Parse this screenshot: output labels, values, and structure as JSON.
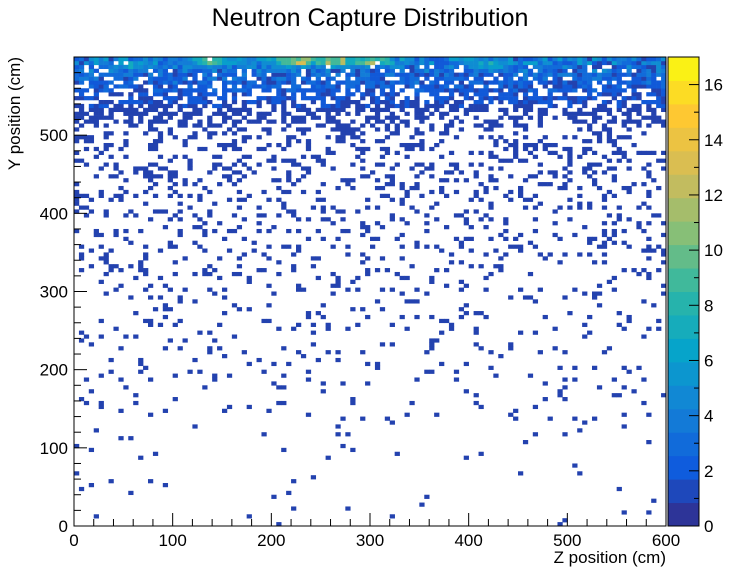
{
  "chart_data": {
    "type": "heatmap",
    "title": "Neutron Capture Distribution",
    "xlabel": "Z position (cm)",
    "ylabel": "Y position (cm)",
    "xlim": [
      0,
      600
    ],
    "ylim": [
      0,
      600
    ],
    "xticks": [
      0,
      100,
      200,
      300,
      400,
      500,
      600
    ],
    "yticks": [
      0,
      100,
      200,
      300,
      400,
      500
    ],
    "colorbar": {
      "range": [
        0,
        17
      ],
      "ticks": [
        0,
        2,
        4,
        6,
        8,
        10,
        12,
        14,
        16
      ],
      "palette": [
        "#352a87",
        "#0f5cdd",
        "#1481d6",
        "#06a4ca",
        "#2eb7a4",
        "#87bf77",
        "#d1bb59",
        "#fec832",
        "#f9fb0e"
      ]
    },
    "bins": {
      "nx": 120,
      "ny": 120
    },
    "cells_description": "Dense band of high counts (4-17) near Y = 520-600 cm across all Z, peaking near Z = 200-250 cm at the top; sparse single counts (1) below Y = 500 cm, thinning toward Y = 0.",
    "peak_regions": [
      {
        "z": 225,
        "y": 595,
        "count": 16
      },
      {
        "z": 265,
        "y": 595,
        "count": 15
      },
      {
        "z": 140,
        "y": 595,
        "count": 12
      },
      {
        "z": 300,
        "y": 595,
        "count": 13
      },
      {
        "z": 420,
        "y": 590,
        "count": 9
      },
      {
        "z": 60,
        "y": 590,
        "count": 8
      }
    ]
  }
}
